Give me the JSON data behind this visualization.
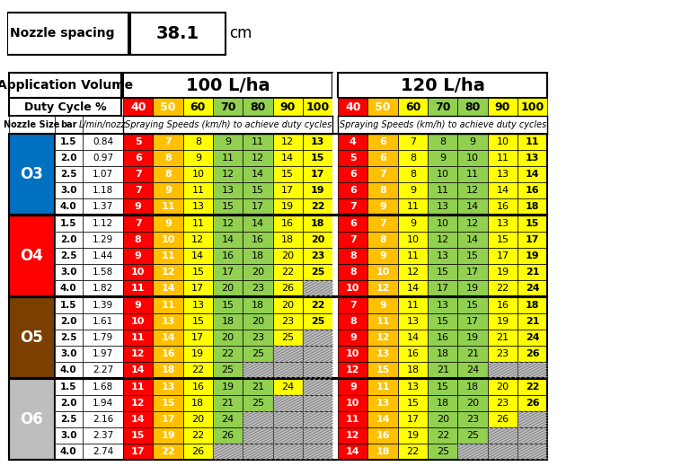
{
  "nozzle_spacing": "38.1",
  "nozzle_spacing_unit": "cm",
  "duty_cycles": [
    40,
    50,
    60,
    70,
    80,
    90,
    100
  ],
  "nozzle_groups": [
    {
      "name": "O3",
      "color": "#0070C0",
      "rows": [
        {
          "bar": 1.5,
          "lmin": 0.84,
          "v100": [
            5,
            7,
            8,
            9,
            11,
            12,
            13
          ],
          "v120": [
            4,
            6,
            7,
            8,
            9,
            10,
            11
          ]
        },
        {
          "bar": 2.0,
          "lmin": 0.97,
          "v100": [
            6,
            8,
            9,
            11,
            12,
            14,
            15
          ],
          "v120": [
            5,
            6,
            8,
            9,
            10,
            11,
            13
          ]
        },
        {
          "bar": 2.5,
          "lmin": 1.07,
          "v100": [
            7,
            8,
            10,
            12,
            14,
            15,
            17
          ],
          "v120": [
            6,
            7,
            8,
            10,
            11,
            13,
            14
          ]
        },
        {
          "bar": 3.0,
          "lmin": 1.18,
          "v100": [
            7,
            9,
            11,
            13,
            15,
            17,
            19
          ],
          "v120": [
            6,
            8,
            9,
            11,
            12,
            14,
            16
          ]
        },
        {
          "bar": 4.0,
          "lmin": 1.37,
          "v100": [
            9,
            11,
            13,
            15,
            17,
            19,
            22
          ],
          "v120": [
            7,
            9,
            11,
            13,
            14,
            16,
            18
          ]
        }
      ]
    },
    {
      "name": "O4",
      "color": "#FF0000",
      "rows": [
        {
          "bar": 1.5,
          "lmin": 1.12,
          "v100": [
            7,
            9,
            11,
            12,
            14,
            16,
            18
          ],
          "v120": [
            6,
            7,
            9,
            10,
            12,
            13,
            15
          ]
        },
        {
          "bar": 2.0,
          "lmin": 1.29,
          "v100": [
            8,
            10,
            12,
            14,
            16,
            18,
            20
          ],
          "v120": [
            7,
            8,
            10,
            12,
            14,
            15,
            17
          ]
        },
        {
          "bar": 2.5,
          "lmin": 1.44,
          "v100": [
            9,
            11,
            14,
            16,
            18,
            20,
            23
          ],
          "v120": [
            8,
            9,
            11,
            13,
            15,
            17,
            19
          ]
        },
        {
          "bar": 3.0,
          "lmin": 1.58,
          "v100": [
            10,
            12,
            15,
            17,
            20,
            22,
            25
          ],
          "v120": [
            8,
            10,
            12,
            15,
            17,
            19,
            21
          ]
        },
        {
          "bar": 4.0,
          "lmin": 1.82,
          "v100": [
            11,
            14,
            17,
            20,
            23,
            26,
            null
          ],
          "v120": [
            10,
            12,
            14,
            17,
            19,
            22,
            24
          ]
        }
      ]
    },
    {
      "name": "O5",
      "color": "#7B3F00",
      "rows": [
        {
          "bar": 1.5,
          "lmin": 1.39,
          "v100": [
            9,
            11,
            13,
            15,
            18,
            20,
            22
          ],
          "v120": [
            7,
            9,
            11,
            13,
            15,
            16,
            18
          ]
        },
        {
          "bar": 2.0,
          "lmin": 1.61,
          "v100": [
            10,
            13,
            15,
            18,
            20,
            23,
            25
          ],
          "v120": [
            8,
            11,
            13,
            15,
            17,
            19,
            21
          ]
        },
        {
          "bar": 2.5,
          "lmin": 1.79,
          "v100": [
            11,
            14,
            17,
            20,
            23,
            25,
            null
          ],
          "v120": [
            9,
            12,
            14,
            16,
            19,
            21,
            24
          ]
        },
        {
          "bar": 3.0,
          "lmin": 1.97,
          "v100": [
            12,
            16,
            19,
            22,
            25,
            null,
            null
          ],
          "v120": [
            10,
            13,
            16,
            18,
            21,
            23,
            26
          ]
        },
        {
          "bar": 4.0,
          "lmin": 2.27,
          "v100": [
            14,
            18,
            22,
            25,
            null,
            null,
            null
          ],
          "v120": [
            12,
            15,
            18,
            21,
            24,
            null,
            null
          ]
        }
      ]
    },
    {
      "name": "O6",
      "color": "#C0C0C0",
      "rows": [
        {
          "bar": 1.5,
          "lmin": 1.68,
          "v100": [
            11,
            13,
            16,
            19,
            21,
            24,
            null
          ],
          "v120": [
            9,
            11,
            13,
            15,
            18,
            20,
            22
          ]
        },
        {
          "bar": 2.0,
          "lmin": 1.94,
          "v100": [
            12,
            15,
            18,
            21,
            25,
            null,
            null
          ],
          "v120": [
            10,
            13,
            15,
            18,
            20,
            23,
            26
          ]
        },
        {
          "bar": 2.5,
          "lmin": 2.16,
          "v100": [
            14,
            17,
            20,
            24,
            null,
            null,
            null
          ],
          "v120": [
            11,
            14,
            17,
            20,
            23,
            26,
            null
          ]
        },
        {
          "bar": 3.0,
          "lmin": 2.37,
          "v100": [
            15,
            19,
            22,
            26,
            null,
            null,
            null
          ],
          "v120": [
            12,
            16,
            19,
            22,
            25,
            null,
            null
          ]
        },
        {
          "bar": 4.0,
          "lmin": 2.74,
          "v100": [
            17,
            22,
            26,
            null,
            null,
            null,
            null
          ],
          "v120": [
            14,
            18,
            22,
            25,
            null,
            null,
            null
          ]
        }
      ]
    }
  ]
}
